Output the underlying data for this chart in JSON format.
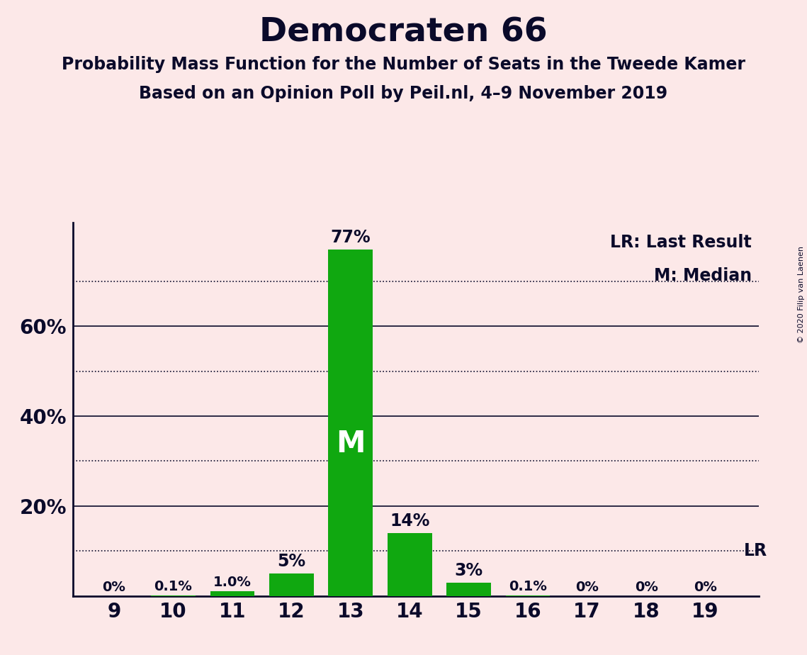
{
  "title": "Democraten 66",
  "subtitle1": "Probability Mass Function for the Number of Seats in the Tweede Kamer",
  "subtitle2": "Based on an Opinion Poll by Peil.nl, 4–9 November 2019",
  "copyright": "© 2020 Filip van Laenen",
  "seats": [
    9,
    10,
    11,
    12,
    13,
    14,
    15,
    16,
    17,
    18,
    19
  ],
  "probabilities": [
    0.0,
    0.001,
    0.01,
    0.05,
    0.77,
    0.14,
    0.03,
    0.001,
    0.0,
    0.0,
    0.0
  ],
  "bar_labels": [
    "0%",
    "0.1%",
    "1.0%",
    "5%",
    "77%",
    "14%",
    "3%",
    "0.1%",
    "0%",
    "0%",
    "0%"
  ],
  "bar_color": "#10a810",
  "median_seat": 13,
  "median_label": "M",
  "lr_value": 0.1,
  "lr_label": "LR",
  "legend_lr": "LR: Last Result",
  "legend_m": "M: Median",
  "background_color": "#fce8e8",
  "text_color": "#0a0a2a",
  "solid_grid": [
    0.2,
    0.4,
    0.6
  ],
  "dotted_grid": [
    0.1,
    0.3,
    0.5,
    0.7
  ],
  "ylabel_ticks": [
    0.2,
    0.4,
    0.6
  ],
  "ylabel_labels": [
    "20%",
    "40%",
    "60%"
  ],
  "ylim": [
    0,
    0.83
  ],
  "title_fontsize": 34,
  "subtitle_fontsize": 17,
  "tick_fontsize": 20,
  "label_fontsize_large": 17,
  "label_fontsize_small": 14,
  "legend_fontsize": 17,
  "median_fontsize": 30,
  "bar_width": 0.75
}
